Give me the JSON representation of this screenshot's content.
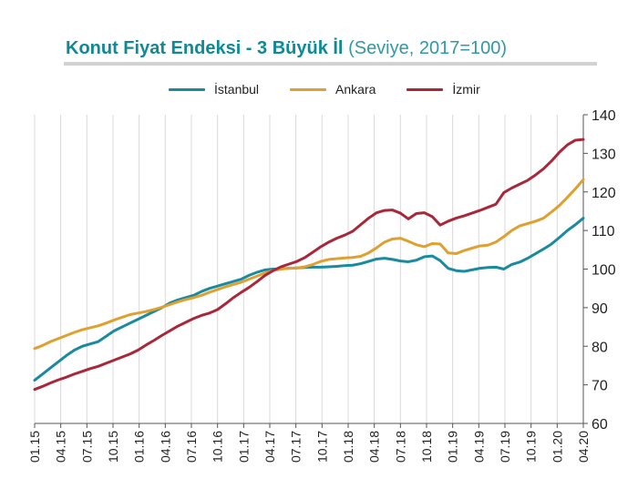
{
  "chart_data": {
    "type": "line",
    "title": "Konut Fiyat Endeksi - 3 Büyük İl",
    "subtitle": "(Seviye, 2017=100)",
    "legend_position": "top",
    "grid": "vertical",
    "ylim": [
      60,
      140
    ],
    "yticks": [
      "60",
      "70",
      "80",
      "90",
      "100",
      "110",
      "120",
      "130",
      "140"
    ],
    "x_tick_labels": [
      "01.15",
      "04.15",
      "07.15",
      "10.15",
      "01.16",
      "04.16",
      "07.16",
      "10.16",
      "01.17",
      "04.17",
      "07.17",
      "10.17",
      "01.18",
      "04.18",
      "07.18",
      "10.18",
      "01.19",
      "04.19",
      "07.19",
      "10.19",
      "01.20",
      "04.20"
    ],
    "series": [
      {
        "name": "İstanbul",
        "color": "#1a8aa0",
        "values": [
          71.2,
          72.8,
          74.4,
          76.0,
          77.6,
          79.0,
          80.0,
          80.6,
          81.2,
          82.6,
          84.0,
          85.0,
          86.0,
          87.0,
          88.0,
          89.0,
          90.0,
          91.2,
          92.0,
          92.6,
          93.2,
          94.2,
          95.0,
          95.6,
          96.2,
          96.8,
          97.4,
          98.4,
          99.2,
          99.8,
          100.0,
          100.1,
          100.2,
          100.3,
          100.4,
          100.5,
          100.5,
          100.6,
          100.7,
          100.9,
          101.0,
          101.4,
          102.0,
          102.6,
          102.8,
          102.5,
          102.1,
          101.9,
          102.3,
          103.2,
          103.4,
          102.2,
          100.2,
          99.6,
          99.4,
          99.8,
          100.2,
          100.4,
          100.5,
          100.0,
          101.2,
          101.8,
          102.8,
          104.0,
          105.2,
          106.5,
          108.2,
          110.0,
          111.5,
          113.2
        ]
      },
      {
        "name": "Ankara",
        "color": "#e0a030",
        "values": [
          79.4,
          80.2,
          81.2,
          82.0,
          82.8,
          83.6,
          84.3,
          84.8,
          85.3,
          86.0,
          86.8,
          87.5,
          88.2,
          88.6,
          89.0,
          89.5,
          90.1,
          90.8,
          91.5,
          92.1,
          92.6,
          93.2,
          94.0,
          94.7,
          95.4,
          96.0,
          96.6,
          97.4,
          98.2,
          99.0,
          99.6,
          100.0,
          100.2,
          100.3,
          100.6,
          101.2,
          102.0,
          102.5,
          102.7,
          102.9,
          103.0,
          103.3,
          104.2,
          105.5,
          107.0,
          107.8,
          108.0,
          107.2,
          106.3,
          105.8,
          106.6,
          106.5,
          104.2,
          104.0,
          104.8,
          105.4,
          106.0,
          106.2,
          107.0,
          108.4,
          110.0,
          111.2,
          111.8,
          112.4,
          113.2,
          114.8,
          116.5,
          118.6,
          120.8,
          123.2
        ]
      },
      {
        "name": "İzmir",
        "color": "#a8283a",
        "values": [
          68.8,
          69.6,
          70.5,
          71.3,
          72.0,
          72.8,
          73.5,
          74.2,
          74.8,
          75.6,
          76.4,
          77.2,
          78.0,
          79.0,
          80.3,
          81.5,
          82.8,
          84.0,
          85.2,
          86.2,
          87.2,
          88.0,
          88.6,
          89.5,
          91.0,
          92.6,
          94.0,
          95.3,
          96.8,
          98.4,
          99.6,
          100.6,
          101.3,
          102.0,
          103.0,
          104.4,
          105.8,
          107.0,
          108.0,
          108.8,
          109.8,
          111.5,
          113.2,
          114.6,
          115.2,
          115.3,
          114.5,
          113.0,
          114.4,
          114.6,
          113.6,
          111.4,
          112.4,
          113.2,
          113.8,
          114.5,
          115.2,
          116.0,
          116.8,
          119.8,
          121.0,
          122.0,
          123.0,
          124.4,
          126.0,
          128.0,
          130.3,
          132.2,
          133.4,
          133.6
        ]
      }
    ]
  }
}
